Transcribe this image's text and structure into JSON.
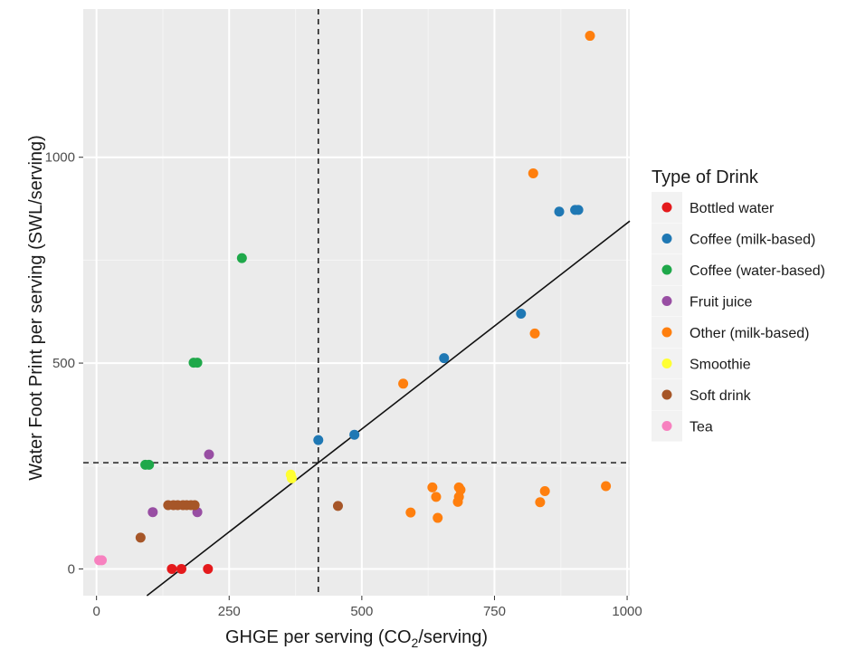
{
  "chart_data": {
    "type": "scatter",
    "title": "",
    "xlabel_main": "GHGE per serving (CO",
    "xlabel_sub": "2",
    "xlabel_tail": "/serving)",
    "ylabel": "Water Foot Print per serving (SWL/serving)",
    "xlim": [
      -25,
      1005
    ],
    "ylim": [
      -65,
      1360
    ],
    "x_ticks": [
      0,
      250,
      500,
      750,
      1000
    ],
    "y_ticks": [
      0,
      500,
      1000
    ],
    "x_tick_labels": [
      "0",
      "250",
      "500",
      "750",
      "1000"
    ],
    "y_tick_labels": [
      "0",
      "500",
      "1000"
    ],
    "grid": true,
    "legend_position": "right",
    "legend_title": "Type of Drink",
    "vline_x": 418,
    "hline_y": 258,
    "fit_line": {
      "x": [
        95,
        1005
      ],
      "y": [
        -65,
        845
      ]
    },
    "series": [
      {
        "name": "Bottled water",
        "color": "#E41A1C",
        "points": [
          [
            142,
            0
          ],
          [
            160,
            0
          ],
          [
            210,
            0
          ]
        ]
      },
      {
        "name": "Coffee (milk-based)",
        "color": "#1F78B4",
        "points": [
          [
            418,
            313
          ],
          [
            486,
            326
          ],
          [
            655,
            512
          ],
          [
            800,
            620
          ],
          [
            872,
            868
          ],
          [
            902,
            872
          ],
          [
            908,
            872
          ]
        ]
      },
      {
        "name": "Coffee (water-based)",
        "color": "#1FA84A",
        "points": [
          [
            92,
            253
          ],
          [
            99,
            253
          ],
          [
            183,
            501
          ],
          [
            190,
            501
          ],
          [
            274,
            755
          ]
        ]
      },
      {
        "name": "Fruit juice",
        "color": "#984EA3",
        "points": [
          [
            106,
            138
          ],
          [
            190,
            138
          ],
          [
            212,
            278
          ]
        ]
      },
      {
        "name": "Other (milk-based)",
        "color": "#FF7F0E",
        "points": [
          [
            578,
            450
          ],
          [
            592,
            137
          ],
          [
            633,
            198
          ],
          [
            640,
            175
          ],
          [
            643,
            124
          ],
          [
            681,
            163
          ],
          [
            683,
            175
          ],
          [
            683,
            198
          ],
          [
            686,
            192
          ],
          [
            823,
            961
          ],
          [
            826,
            572
          ],
          [
            836,
            162
          ],
          [
            845,
            189
          ],
          [
            930,
            1295
          ],
          [
            960,
            201
          ]
        ]
      },
      {
        "name": "Smoothie",
        "color": "#FFFF33",
        "points": [
          [
            366,
            229
          ],
          [
            368,
            220
          ]
        ]
      },
      {
        "name": "Soft drink",
        "color": "#A65628",
        "points": [
          [
            83,
            76
          ],
          [
            135,
            155
          ],
          [
            145,
            155
          ],
          [
            153,
            155
          ],
          [
            163,
            155
          ],
          [
            170,
            155
          ],
          [
            178,
            155
          ],
          [
            185,
            155
          ],
          [
            455,
            153
          ]
        ]
      },
      {
        "name": "Tea",
        "color": "#F781BF",
        "points": [
          [
            5,
            21
          ],
          [
            10,
            21
          ]
        ]
      }
    ]
  }
}
